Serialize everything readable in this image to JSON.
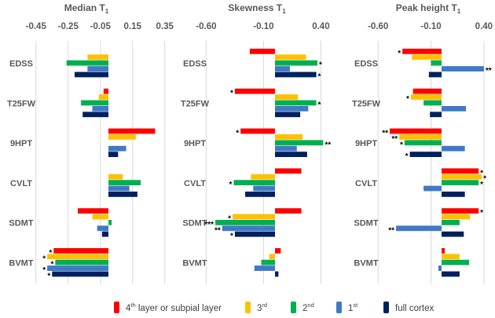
{
  "chart_data": [
    {
      "type": "bar",
      "orientation": "horizontal",
      "title": "Median T",
      "title_subscript": "1",
      "categories": [
        "EDSS",
        "T25FW",
        "9HPT",
        "CVLT",
        "SDMT",
        "BVMT"
      ],
      "xticks": [
        "-0.45",
        "-0.25",
        "-0.05",
        "0.15",
        "0.35"
      ],
      "xlim": [
        -0.5,
        0.38
      ],
      "series": [
        {
          "name": "4th layer or subpial layer",
          "values": [
            0,
            -0.03,
            0.29,
            0,
            -0.19,
            -0.34
          ],
          "sig": [
            "",
            "",
            "",
            "",
            "",
            "*"
          ]
        },
        {
          "name": "3rd",
          "values": [
            -0.13,
            -0.06,
            0.17,
            0.09,
            -0.1,
            -0.38
          ],
          "sig": [
            "",
            "",
            "",
            "",
            "",
            "*"
          ]
        },
        {
          "name": "2nd",
          "values": [
            -0.26,
            -0.17,
            0,
            0.2,
            0.02,
            -0.33
          ],
          "sig": [
            "",
            "",
            "",
            "",
            "",
            "*"
          ]
        },
        {
          "name": "1st",
          "values": [
            -0.13,
            -0.1,
            0.11,
            0.13,
            -0.07,
            -0.38
          ],
          "sig": [
            "",
            "",
            "",
            "",
            "",
            "*"
          ]
        },
        {
          "name": "full cortex",
          "values": [
            -0.21,
            -0.16,
            0.06,
            0.18,
            -0.04,
            -0.35
          ],
          "sig": [
            "",
            "",
            "",
            "",
            "",
            "*"
          ]
        }
      ]
    },
    {
      "type": "bar",
      "orientation": "horizontal",
      "title": "Skewness T",
      "title_subscript": "1",
      "categories": [
        "EDSS",
        "T25FW",
        "9HPT",
        "CVLT",
        "SDMT",
        "BVMT"
      ],
      "xticks": [
        "-0.60",
        "-0.10",
        "0.40"
      ],
      "xlim": [
        -0.65,
        0.45
      ],
      "series": [
        {
          "name": "4th layer or subpial layer",
          "values": [
            -0.22,
            -0.35,
            -0.3,
            0.23,
            0.23,
            0.05
          ],
          "sig": [
            "",
            "*",
            "*",
            "",
            "",
            ""
          ]
        },
        {
          "name": "3rd",
          "values": [
            0.27,
            0.2,
            0.24,
            -0.21,
            -0.37,
            -0.05
          ],
          "sig": [
            "",
            "",
            "",
            "",
            "*",
            ""
          ]
        },
        {
          "name": "2nd",
          "values": [
            0.37,
            0.36,
            0.42,
            -0.36,
            -0.52,
            -0.12
          ],
          "sig": [
            "*",
            "*",
            "**",
            "*",
            "***",
            ""
          ]
        },
        {
          "name": "1st",
          "values": [
            0.13,
            0.29,
            0.19,
            -0.19,
            -0.46,
            -0.18
          ],
          "sig": [
            "",
            "",
            "",
            "",
            "**",
            ""
          ]
        },
        {
          "name": "full cortex",
          "values": [
            0.36,
            0.22,
            0.28,
            -0.26,
            -0.35,
            0.03
          ],
          "sig": [
            "*",
            "",
            "",
            "",
            "*",
            ""
          ]
        }
      ]
    },
    {
      "type": "bar",
      "orientation": "horizontal",
      "title": "Peak height T",
      "title_subscript": "1",
      "categories": [
        "EDSS",
        "T25FW",
        "9HPT",
        "CVLT",
        "SDMT",
        "BVMT"
      ],
      "xticks": [
        "-0.60",
        "-0.10",
        "0.40"
      ],
      "xlim": [
        -0.65,
        0.45
      ],
      "series": [
        {
          "name": "4th layer or subpial layer",
          "values": [
            -0.37,
            -0.27,
            -0.49,
            0.35,
            0.35,
            0.03
          ],
          "sig": [
            "*",
            "",
            "**",
            "*",
            "*",
            ""
          ]
        },
        {
          "name": "3rd",
          "values": [
            -0.28,
            -0.29,
            -0.4,
            0.38,
            0.27,
            0.17
          ],
          "sig": [
            "",
            "*",
            "**",
            "*",
            "",
            ""
          ]
        },
        {
          "name": "2nd",
          "values": [
            -0.1,
            -0.17,
            -0.35,
            0.35,
            0.17,
            0.26
          ],
          "sig": [
            "",
            "",
            "*",
            "*",
            "",
            ""
          ]
        },
        {
          "name": "1st",
          "values": [
            0.4,
            0.23,
            0.22,
            -0.17,
            -0.43,
            -0.03
          ],
          "sig": [
            "**",
            "",
            "",
            "",
            "**",
            ""
          ]
        },
        {
          "name": "full cortex",
          "values": [
            -0.12,
            -0.11,
            -0.3,
            0.22,
            0.21,
            0.17
          ],
          "sig": [
            "",
            "",
            "*",
            "",
            "",
            ""
          ]
        }
      ]
    }
  ],
  "legend": {
    "placement": "bottom",
    "items": [
      {
        "base": "4",
        "sup": "th",
        "rest": " layer or subpial layer",
        "color": "#ff0000"
      },
      {
        "base": "3",
        "sup": "rd",
        "rest": "",
        "color": "#ffc000"
      },
      {
        "base": "2",
        "sup": "nd",
        "rest": "",
        "color": "#00b050"
      },
      {
        "base": "1",
        "sup": "st",
        "rest": "",
        "color": "#3f79c7"
      },
      {
        "base": "full cortex",
        "sup": "",
        "rest": "",
        "color": "#002060"
      }
    ]
  }
}
